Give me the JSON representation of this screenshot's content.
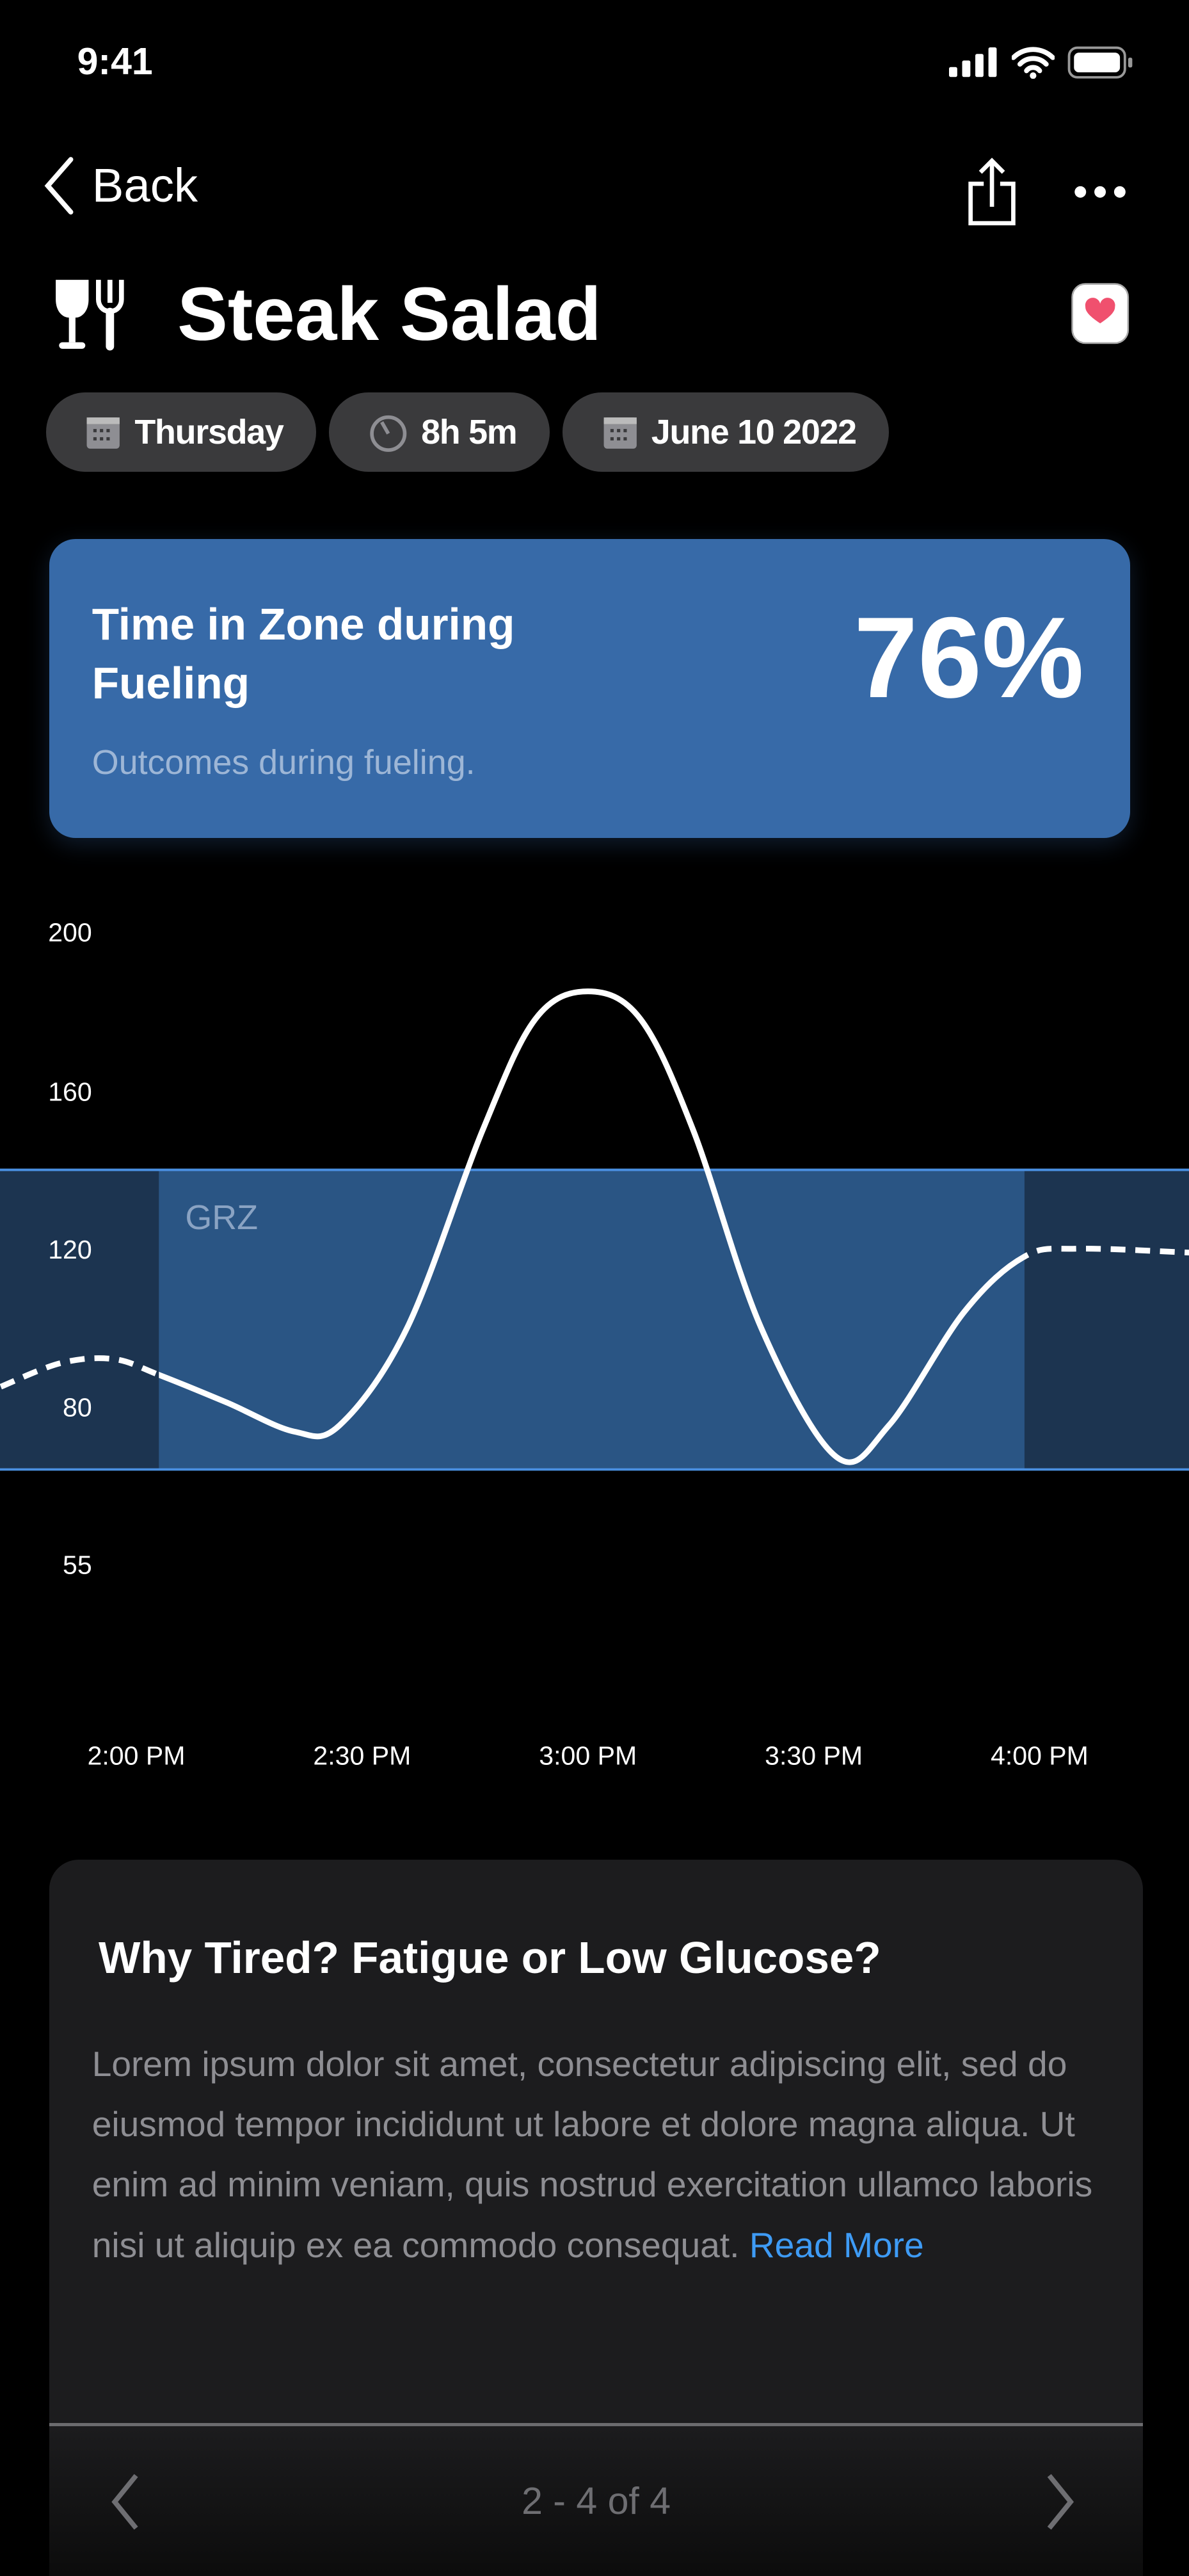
{
  "status_bar": {
    "time": "9:41"
  },
  "nav": {
    "back_label": "Back"
  },
  "header": {
    "title": "Steak Salad"
  },
  "chips": [
    {
      "icon": "calendar-icon",
      "label": "Thursday"
    },
    {
      "icon": "timer-icon",
      "label": "8h 5m"
    },
    {
      "icon": "calendar-icon",
      "label": "June 10 2022"
    }
  ],
  "zone_card": {
    "title": "Time in Zone during Fueling",
    "subtitle": "Outcomes during fueling.",
    "percent": "76%",
    "color": "#376aa8"
  },
  "chart_data": {
    "type": "line",
    "y_ticks": [
      "200",
      "160",
      "120",
      "80",
      "55"
    ],
    "x_ticks": [
      "2:00 PM",
      "2:30 PM",
      "3:00 PM",
      "3:30 PM",
      "4:00 PM"
    ],
    "zone_label": "GRZ",
    "zone_range": [
      70,
      140
    ],
    "fueling_window": [
      "2:03 PM",
      "3:58 PM"
    ],
    "grid": false,
    "points": [
      {
        "t": "1:42 PM",
        "v": 85
      },
      {
        "t": "1:50 PM",
        "v": 91
      },
      {
        "t": "1:57 PM",
        "v": 92
      },
      {
        "t": "2:03 PM",
        "v": 88
      },
      {
        "t": "2:12 PM",
        "v": 81
      },
      {
        "t": "2:21 PM",
        "v": 76
      },
      {
        "t": "2:27 PM",
        "v": 77
      },
      {
        "t": "2:36 PM",
        "v": 100
      },
      {
        "t": "2:46 PM",
        "v": 150
      },
      {
        "t": "2:53 PM",
        "v": 178
      },
      {
        "t": "3:00 PM",
        "v": 185
      },
      {
        "t": "3:07 PM",
        "v": 178
      },
      {
        "t": "3:14 PM",
        "v": 150
      },
      {
        "t": "3:23 PM",
        "v": 100
      },
      {
        "t": "3:33 PM",
        "v": 72
      },
      {
        "t": "3:40 PM",
        "v": 77
      },
      {
        "t": "3:50 PM",
        "v": 104
      },
      {
        "t": "3:58 PM",
        "v": 118
      },
      {
        "t": "4:05 PM",
        "v": 120
      },
      {
        "t": "4:20 PM",
        "v": 119
      }
    ],
    "colors": {
      "zone": "#2a5584",
      "outside_zone": "#1c3450",
      "zone_border": "#4a90e2",
      "line": "#ffffff"
    }
  },
  "insight": {
    "title": "Why Tired? Fatigue or Low Glucose?",
    "body": "Lorem ipsum dolor sit amet, consectetur adipiscing elit, sed do eiusmod tempor incididunt ut labore et dolore magna aliqua. Ut enim ad minim veniam, quis nostrud exercitation ullamco laboris nisi ut aliquip ex ea commodo consequat.",
    "read_more": "Read More",
    "pager": "2 - 4 of 4"
  }
}
